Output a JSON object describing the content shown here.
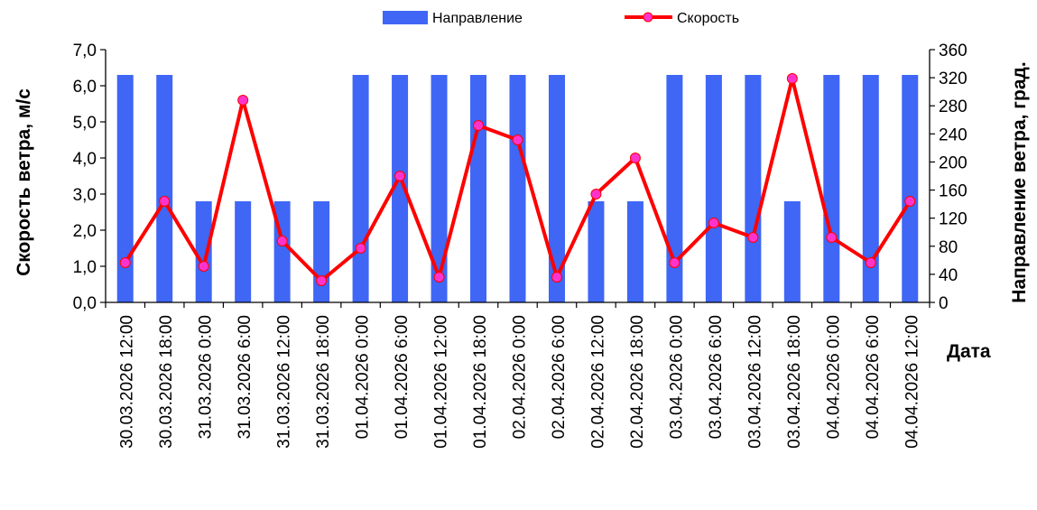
{
  "chart_data": {
    "type": "bar+line",
    "legend": {
      "position": "top",
      "bar_label": "Направление",
      "line_label": "Скорость"
    },
    "xlabel": "Дата",
    "ylabel_left": "Скорость ветра, м/с",
    "ylabel_right": "Направление ветра, град.",
    "categories": [
      "30.03.2026 12:00",
      "30.03.2026 18:00",
      "31.03.2026 0:00",
      "31.03.2026 6:00",
      "31.03.2026 12:00",
      "31.03.2026 18:00",
      "01.04.2026 0:00",
      "01.04.2026 6:00",
      "01.04.2026 12:00",
      "01.04.2026 18:00",
      "02.04.2026 0:00",
      "02.04.2026 6:00",
      "02.04.2026 12:00",
      "02.04.2026 18:00",
      "03.04.2026 0:00",
      "03.04.2026 6:00",
      "03.04.2026 12:00",
      "03.04.2026 18:00",
      "04.04.2026 0:00",
      "04.04.2026 6:00",
      "04.04.2026 12:00"
    ],
    "direction_deg": [
      324,
      324,
      144,
      144,
      144,
      144,
      324,
      324,
      324,
      324,
      324,
      324,
      144,
      144,
      324,
      324,
      324,
      144,
      324,
      324,
      324
    ],
    "speed_ms": [
      1.1,
      2.8,
      1.0,
      5.6,
      1.7,
      0.6,
      1.5,
      3.5,
      0.7,
      4.9,
      4.5,
      0.7,
      3.0,
      4.0,
      1.1,
      2.2,
      1.8,
      6.2,
      1.8,
      1.1,
      2.8
    ],
    "left_axis": {
      "min": 0,
      "max": 7,
      "ticks": [
        "0,0",
        "1,0",
        "2,0",
        "3,0",
        "4,0",
        "5,0",
        "6,0",
        "7,0"
      ]
    },
    "right_axis": {
      "min": 0,
      "max": 360,
      "ticks": [
        "0",
        "40",
        "80",
        "120",
        "160",
        "200",
        "240",
        "280",
        "320",
        "360"
      ]
    },
    "colors": {
      "bar": "#3f66f5",
      "line": "#ff0000",
      "marker": "#ff33cc"
    },
    "grid": false
  }
}
